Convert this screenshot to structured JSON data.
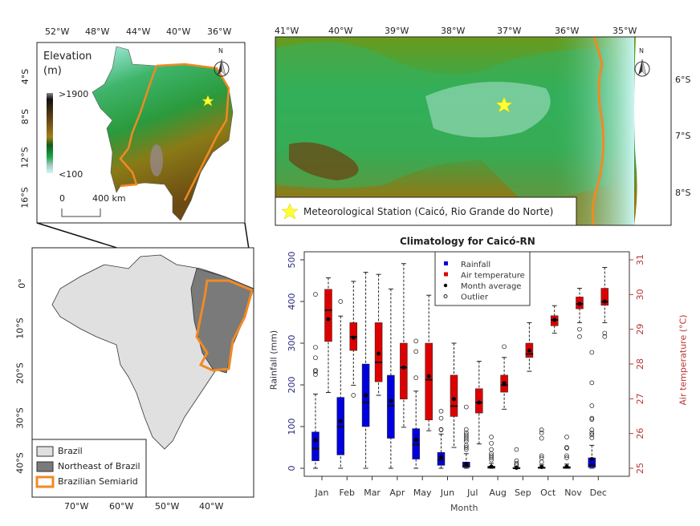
{
  "inset_map": {
    "lon_labels": [
      "52°W",
      "48°W",
      "44°W",
      "40°W",
      "36°W"
    ],
    "lat_labels": [
      "4°S",
      "8°S",
      "12°S",
      "16°S"
    ],
    "elevation_title": "Elevation",
    "elevation_unit": "(m)",
    "elevation_max": ">1900",
    "elevation_min": "<100",
    "scale_zero": "0",
    "scale_label": "400 km",
    "north_label": "N"
  },
  "zoom_map": {
    "lon_labels": [
      "41°W",
      "40°W",
      "39°W",
      "38°W",
      "37°W",
      "36°W",
      "35°W"
    ],
    "lat_labels": [
      "6°S",
      "7°S",
      "8°S"
    ],
    "north_label": "N",
    "station_legend": "Meteorological Station (Caicó, Rio Grande do Norte)"
  },
  "brazil_map": {
    "lat_labels": [
      "0°",
      "10°S",
      "20°S",
      "30°S",
      "40°S"
    ],
    "lon_labels": [
      "70°W",
      "60°W",
      "50°W",
      "40°W"
    ],
    "legend": [
      "Brazil",
      "Northeast of Brazil",
      "Brazilian Semiarid"
    ]
  },
  "colors": {
    "rainfall": "#0000dd",
    "temperature": "#dd0000",
    "semiarid": "#f08a24",
    "station": "#ffff33"
  },
  "chart_data": {
    "type": "boxplot",
    "title": "Climatology for Caicó-RN",
    "xlabel": "Month",
    "ylabel": "Rainfall (mm)",
    "y2label": "Air temperature (°C)",
    "ylim": [
      0,
      500
    ],
    "y2lim": [
      25,
      31
    ],
    "yticks": [
      "0",
      "100",
      "200",
      "300",
      "400",
      "500"
    ],
    "y2ticks": [
      "25",
      "26",
      "27",
      "28",
      "29",
      "30",
      "31"
    ],
    "categories": [
      "Jan",
      "Feb",
      "Mar",
      "Apr",
      "May",
      "Jun",
      "Jul",
      "Aug",
      "Sep",
      "Oct",
      "Nov",
      "Dec"
    ],
    "legend": [
      "Rainfall",
      "Air temperature",
      "Month average",
      "Outlier"
    ],
    "legend_position": "top-center",
    "series": [
      {
        "name": "Rainfall",
        "axis": "left",
        "boxes": [
          {
            "low": 0,
            "q1": 18,
            "median": 47,
            "q3": 87,
            "high": 178,
            "mean": 67,
            "outliers": [
              417,
              290,
              265,
              235,
              232,
              225
            ]
          },
          {
            "low": 0,
            "q1": 32,
            "median": 100,
            "q3": 170,
            "high": 365,
            "mean": 113,
            "outliers": [
              400
            ]
          },
          {
            "low": 0,
            "q1": 100,
            "median": 158,
            "q3": 250,
            "high": 470,
            "mean": 175,
            "outliers": []
          },
          {
            "low": 0,
            "q1": 72,
            "median": 150,
            "q3": 223,
            "high": 430,
            "mean": 162,
            "outliers": []
          },
          {
            "low": 0,
            "q1": 22,
            "median": 57,
            "q3": 95,
            "high": 185,
            "mean": 68,
            "outliers": [
              305,
              280,
              217
            ]
          },
          {
            "low": 0,
            "q1": 7,
            "median": 20,
            "q3": 38,
            "high": 82,
            "mean": 27,
            "outliers": [
              137,
              120,
              93,
              92
            ]
          },
          {
            "low": 0,
            "q1": 2,
            "median": 5,
            "q3": 15,
            "high": 35,
            "mean": 10,
            "outliers": [
              147,
              93,
              85,
              80,
              75,
              70,
              65,
              55,
              50,
              45
            ]
          },
          {
            "low": 0,
            "q1": 0,
            "median": 2,
            "q3": 5,
            "high": 12,
            "mean": 4,
            "outliers": [
              75,
              60,
              45,
              35,
              30,
              25,
              20
            ]
          },
          {
            "low": 0,
            "q1": 0,
            "median": 0,
            "q3": 2,
            "high": 5,
            "mean": 1,
            "outliers": [
              45,
              18,
              12,
              8
            ]
          },
          {
            "low": 0,
            "q1": 0,
            "median": 1,
            "q3": 3,
            "high": 8,
            "mean": 3,
            "outliers": [
              92,
              85,
              72,
              30,
              25,
              15
            ]
          },
          {
            "low": 0,
            "q1": 0,
            "median": 1,
            "q3": 4,
            "high": 10,
            "mean": 4,
            "outliers": [
              75,
              50,
              48,
              30,
              25
            ]
          },
          {
            "low": 0,
            "q1": 2,
            "median": 8,
            "q3": 25,
            "high": 55,
            "mean": 22,
            "outliers": [
              278,
              205,
              150,
              120,
              117,
              92,
              85,
              80,
              73
            ]
          }
        ]
      },
      {
        "name": "Air temperature",
        "axis": "right",
        "boxes": [
          {
            "low": 27.18,
            "q1": 28.65,
            "median": 29.55,
            "q3": 30.15,
            "high": 30.48,
            "mean": 29.29,
            "outliers": []
          },
          {
            "low": 27.39,
            "q1": 28.39,
            "median": 28.78,
            "q3": 29.19,
            "high": 30.38,
            "mean": 28.76,
            "outliers": [
              27.1
            ]
          },
          {
            "low": 27.1,
            "q1": 27.49,
            "median": 28.05,
            "q3": 29.19,
            "high": 30.58,
            "mean": 28.3,
            "outliers": []
          },
          {
            "low": 26.18,
            "q1": 26.99,
            "median": 27.9,
            "q3": 28.6,
            "high": 30.89,
            "mean": 27.9,
            "outliers": []
          },
          {
            "low": 26.08,
            "q1": 26.39,
            "median": 27.55,
            "q3": 28.6,
            "high": 29.98,
            "mean": 27.65,
            "outliers": []
          },
          {
            "low": 25.6,
            "q1": 26.49,
            "median": 26.79,
            "q3": 27.68,
            "high": 28.6,
            "mean": 26.99,
            "outliers": []
          },
          {
            "low": 25.7,
            "q1": 26.59,
            "median": 26.89,
            "q3": 27.29,
            "high": 28.08,
            "mean": 26.89,
            "outliers": []
          },
          {
            "low": 26.7,
            "q1": 27.19,
            "median": 27.39,
            "q3": 27.68,
            "high": 28.19,
            "mean": 27.45,
            "outliers": [
              28.5
            ]
          },
          {
            "low": 27.79,
            "q1": 28.19,
            "median": 28.29,
            "q3": 28.6,
            "high": 29.19,
            "mean": 28.39,
            "outliers": []
          },
          {
            "low": 28.89,
            "q1": 29.1,
            "median": 29.27,
            "q3": 29.39,
            "high": 29.68,
            "mean": 29.27,
            "outliers": []
          },
          {
            "low": 29.19,
            "q1": 29.59,
            "median": 29.73,
            "q3": 29.93,
            "high": 30.18,
            "mean": 29.73,
            "outliers": [
              29.0,
              28.79
            ]
          },
          {
            "low": 29.19,
            "q1": 29.69,
            "median": 29.79,
            "q3": 30.18,
            "high": 30.78,
            "mean": 29.8,
            "outliers": [
              28.89,
              28.79
            ]
          }
        ]
      }
    ]
  }
}
